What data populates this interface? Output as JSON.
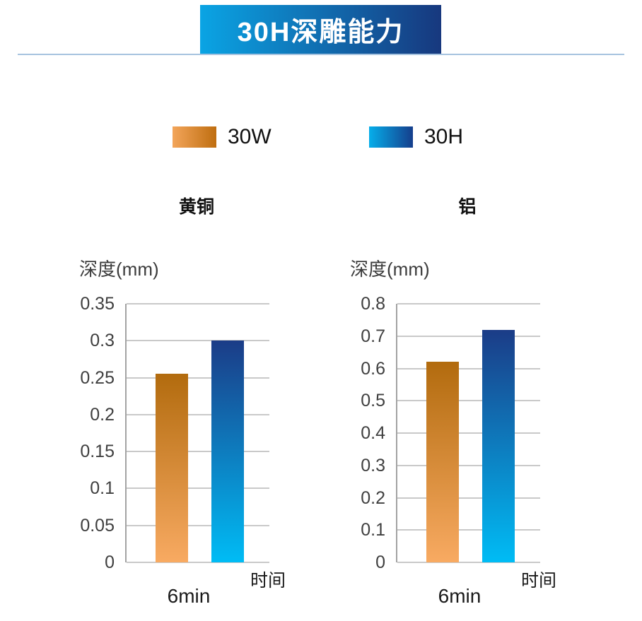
{
  "banner": {
    "text": "30H深雕能力",
    "gradient": [
      "#0aa4e4",
      "#17387e"
    ],
    "text_color": "#ffffff"
  },
  "divider_color": "#a6c3df",
  "legend": {
    "items": [
      {
        "label": "30W",
        "swatch_gradient": [
          "#f3a55a",
          "#bf6e10"
        ]
      },
      {
        "label": "30H",
        "swatch_gradient": [
          "#06aeea",
          "#153e8c"
        ]
      }
    ]
  },
  "colors": {
    "bar_30w_top": "#b26b0e",
    "bar_30w_bottom": "#f8aa62",
    "bar_30h_top": "#1b3c87",
    "bar_30h_bottom": "#00bcf5",
    "gridline": "#c9c9c9",
    "axis": "#a3a3a3",
    "tick_text": "#3f3f3f"
  },
  "chart_data": [
    {
      "type": "bar",
      "title": "黄铜",
      "ylabel": "深度(mm)",
      "xlabel": "时间",
      "categories": [
        "6min"
      ],
      "series": [
        {
          "name": "30W",
          "values": [
            0.255
          ]
        },
        {
          "name": "30H",
          "values": [
            0.3
          ]
        }
      ],
      "ylim": [
        0,
        0.35
      ],
      "yticks": [
        0,
        0.05,
        0.1,
        0.15,
        0.2,
        0.25,
        0.3,
        0.35
      ],
      "grid": true,
      "legend_position": "top"
    },
    {
      "type": "bar",
      "title": "铝",
      "ylabel": "深度(mm)",
      "xlabel": "时间",
      "categories": [
        "6min"
      ],
      "series": [
        {
          "name": "30W",
          "values": [
            0.62
          ]
        },
        {
          "name": "30H",
          "values": [
            0.72
          ]
        }
      ],
      "ylim": [
        0,
        0.8
      ],
      "yticks": [
        0,
        0.1,
        0.2,
        0.3,
        0.4,
        0.5,
        0.6,
        0.7,
        0.8
      ],
      "grid": true,
      "legend_position": "top"
    }
  ]
}
